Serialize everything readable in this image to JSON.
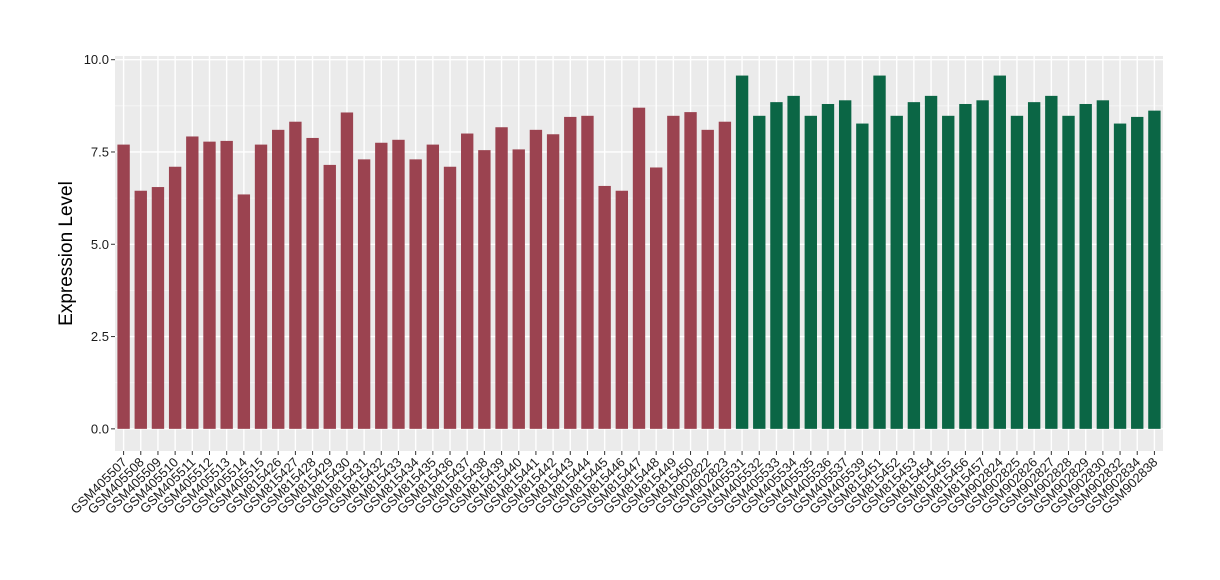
{
  "chart_data": {
    "type": "bar",
    "ylabel": "Expression Level",
    "xlabel": "",
    "ylim": [
      -0.6,
      10.1
    ],
    "yticks": [
      0,
      2.5,
      5,
      7.5,
      10
    ],
    "ytick_labels": [
      "0.0",
      "2.5",
      "5.0",
      "7.5",
      "10.0"
    ],
    "grid": true,
    "background": "#ebebeb",
    "categories": [
      "GSM405507",
      "GSM405508",
      "GSM405509",
      "GSM405510",
      "GSM405511",
      "GSM405512",
      "GSM405513",
      "GSM405514",
      "GSM405515",
      "GSM815426",
      "GSM815427",
      "GSM815428",
      "GSM815429",
      "GSM815430",
      "GSM815431",
      "GSM815432",
      "GSM815433",
      "GSM815434",
      "GSM815435",
      "GSM815436",
      "GSM815437",
      "GSM815438",
      "GSM815439",
      "GSM815440",
      "GSM815441",
      "GSM815442",
      "GSM815443",
      "GSM815444",
      "GSM815445",
      "GSM815446",
      "GSM815447",
      "GSM815448",
      "GSM815449",
      "GSM815450",
      "GSM902822",
      "GSM902823",
      "GSM405531",
      "GSM405532",
      "GSM405533",
      "GSM405534",
      "GSM405535",
      "GSM405536",
      "GSM405537",
      "GSM405539",
      "GSM815451",
      "GSM815452",
      "GSM815453",
      "GSM815454",
      "GSM815455",
      "GSM815456",
      "GSM815457",
      "GSM902824",
      "GSM902825",
      "GSM902826",
      "GSM902827",
      "GSM902828",
      "GSM902829",
      "GSM902830",
      "GSM902832",
      "GSM902834",
      "GSM902838"
    ],
    "values": [
      7.7,
      6.45,
      6.55,
      7.1,
      7.92,
      7.78,
      7.8,
      6.35,
      7.7,
      8.1,
      8.32,
      7.88,
      7.15,
      8.57,
      7.3,
      7.75,
      7.83,
      7.3,
      7.7,
      7.1,
      8.0,
      7.55,
      8.17,
      7.57,
      8.1,
      7.98,
      8.45,
      8.48,
      6.58,
      6.45,
      8.7,
      7.08,
      8.48,
      8.58,
      8.1,
      8.32,
      9.57,
      8.48,
      8.85,
      9.02,
      8.48,
      8.8,
      8.9,
      8.27,
      9.57,
      8.48,
      8.85,
      9.02,
      8.48,
      8.8,
      8.9,
      9.57,
      8.48,
      8.85,
      9.02,
      8.48,
      8.8,
      8.9,
      8.27,
      8.45,
      8.62
    ],
    "series_colors": [
      "#9b4350",
      "#0b6645"
    ],
    "split_index": 36
  }
}
